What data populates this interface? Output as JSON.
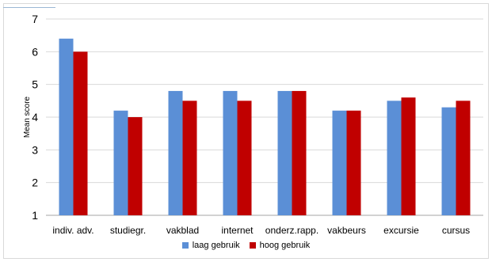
{
  "chart_data": {
    "type": "bar",
    "categories": [
      "indiv. adv.",
      "studiegr.",
      "vakblad",
      "internet",
      "onderz.rapp.",
      "vakbeurs",
      "excursie",
      "cursus"
    ],
    "series": [
      {
        "name": "laag gebruik",
        "values": [
          6.4,
          4.2,
          4.8,
          4.8,
          4.8,
          4.2,
          4.5,
          4.3
        ],
        "color": "#5B8FD6"
      },
      {
        "name": "hoog gebruik",
        "values": [
          6.0,
          4.0,
          4.5,
          4.5,
          4.8,
          4.2,
          4.6,
          4.5
        ],
        "color": "#C00000"
      }
    ],
    "ylabel": "Mean score",
    "xlabel": "",
    "ylim": [
      1,
      7
    ],
    "yticks": [
      1,
      2,
      3,
      4,
      5,
      6,
      7
    ],
    "grid": true,
    "legend_position": "bottom"
  }
}
